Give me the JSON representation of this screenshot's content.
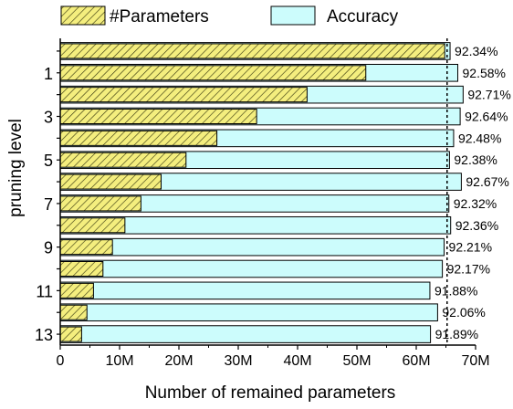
{
  "chart_data": {
    "type": "bar",
    "orientation": "horizontal",
    "xlabel": "Number of remained parameters",
    "ylabel": "pruning level",
    "xlim": [
      0,
      70
    ],
    "x_unit": "M",
    "x_ticks": [
      "0",
      "10M",
      "20M",
      "30M",
      "40M",
      "50M",
      "60M",
      "70M"
    ],
    "y_tick_labels": [
      "1",
      "3",
      "5",
      "7",
      "9",
      "11",
      "13"
    ],
    "y_tick_levels": [
      1,
      3,
      5,
      7,
      9,
      11,
      13
    ],
    "levels": [
      0,
      1,
      2,
      3,
      4,
      5,
      6,
      7,
      8,
      9,
      10,
      11,
      12,
      13
    ],
    "reference_line_x": 65.2,
    "legend_placement": "top",
    "series": [
      {
        "name": "#Parameters",
        "style": "hatched",
        "color": "#f4ee7e",
        "values": [
          64.8,
          51.5,
          41.6,
          33.1,
          26.4,
          21.2,
          17.0,
          13.6,
          10.9,
          8.8,
          7.2,
          5.6,
          4.5,
          3.6
        ]
      },
      {
        "name": "Accuracy",
        "color": "#ccfcfc",
        "values": [
          65.7,
          67.0,
          67.9,
          67.4,
          66.3,
          65.6,
          67.6,
          65.5,
          65.8,
          64.7,
          64.4,
          62.3,
          63.6,
          62.4
        ],
        "labels": [
          "92.34%",
          "92.58%",
          "92.71%",
          "92.64%",
          "92.48%",
          "92.38%",
          "92.67%",
          "92.32%",
          "92.36%",
          "92.21%",
          "92.17%",
          "91.88%",
          "92.06%",
          "91.89%"
        ]
      }
    ]
  }
}
